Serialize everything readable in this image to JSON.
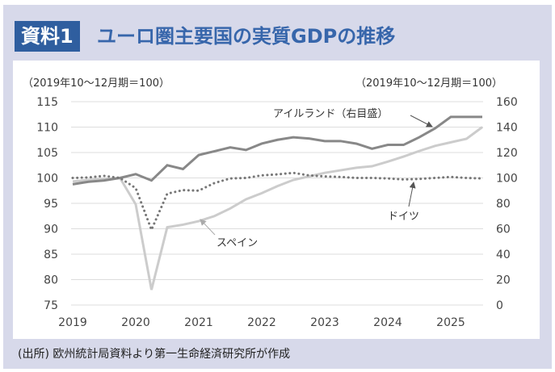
{
  "header": {
    "badge": "資料1",
    "title": "ユーロ圏主要国の実質GDPの推移"
  },
  "footer": {
    "source": "(出所) 欧州統計局資料より第一生命経済研究所が作成"
  },
  "colors": {
    "background": "#d7d9ea",
    "badge": "#2f5e9f",
    "title": "#3766ab",
    "ireland": "#888888",
    "spain": "#cccccc",
    "germany": "#777777"
  },
  "chart_data": {
    "type": "line",
    "left_axis_label": "（2019年10～12月期＝100）",
    "right_axis_label": "（2019年10～12月期＝100）",
    "left_ylim": [
      75,
      115
    ],
    "left_ticks": [
      75,
      80,
      85,
      90,
      95,
      100,
      105,
      110,
      115
    ],
    "right_ylim": [
      0,
      160
    ],
    "right_ticks": [
      0,
      20,
      40,
      60,
      80,
      100,
      120,
      140,
      160
    ],
    "x_ticks": [
      "2019",
      "2020",
      "2021",
      "2022",
      "2023",
      "2024",
      "2025"
    ],
    "x": [
      "2019Q1",
      "2019Q2",
      "2019Q3",
      "2019Q4",
      "2020Q1",
      "2020Q2",
      "2020Q3",
      "2020Q4",
      "2021Q1",
      "2021Q2",
      "2021Q3",
      "2021Q4",
      "2022Q1",
      "2022Q2",
      "2022Q3",
      "2022Q4",
      "2023Q1",
      "2023Q2",
      "2023Q3",
      "2023Q4",
      "2024Q1",
      "2024Q2",
      "2024Q3",
      "2024Q4",
      "2025Q1",
      "2025Q2",
      "2025Q3"
    ],
    "grid": true,
    "series": [
      {
        "name": "アイルランド（右目盛）",
        "axis": "right",
        "style": "solid-dark",
        "values": [
          95,
          97,
          98,
          100,
          103,
          98,
          110,
          107,
          118,
          121,
          124,
          122,
          127,
          130,
          132,
          131,
          129,
          129,
          127,
          123,
          126,
          126,
          132,
          139,
          148,
          148,
          148
        ]
      },
      {
        "name": "スペイン",
        "axis": "left",
        "style": "solid-light",
        "values": [
          99.3,
          99.6,
          99.8,
          100,
          94.8,
          78,
          90.3,
          90.8,
          91.5,
          92.5,
          94,
          95.8,
          97,
          98.4,
          99.6,
          100.3,
          101,
          101.5,
          102,
          102.3,
          103.2,
          104.2,
          105.3,
          106.3,
          107,
          107.7,
          110
        ]
      },
      {
        "name": "ドイツ",
        "axis": "left",
        "style": "dotted",
        "values": [
          100,
          100.1,
          100.4,
          100,
          98,
          89.8,
          96.9,
          97.6,
          97.5,
          99,
          99.9,
          100,
          100.5,
          100.7,
          101,
          100.5,
          100.3,
          100.2,
          100,
          100,
          99.9,
          99.7,
          99.8,
          100,
          100.2,
          100,
          99.9
        ]
      }
    ]
  }
}
